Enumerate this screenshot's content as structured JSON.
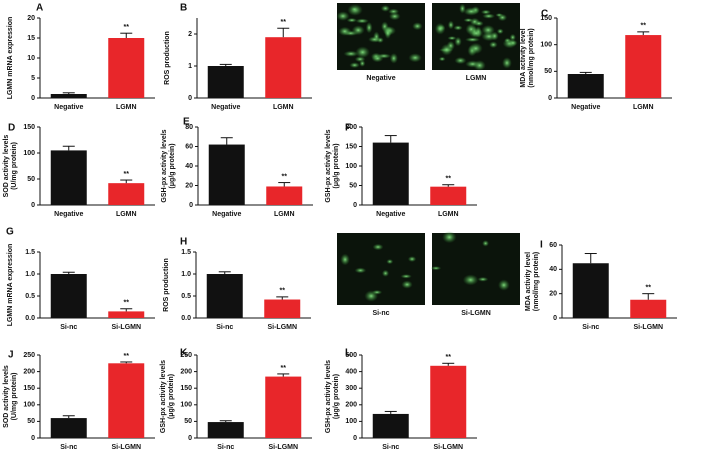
{
  "chart_data": [
    {
      "type": "bar",
      "panel": "A",
      "ylabel": [
        "LGMN mRNA expression"
      ],
      "categories": [
        "Negative",
        "LGMN"
      ],
      "values": [
        1,
        15
      ],
      "errors": [
        0.3,
        1.2
      ],
      "colors": [
        "#111111",
        "#e8262a"
      ],
      "annotation": "**",
      "ylim": [
        0,
        20
      ],
      "yticks": [
        0,
        5,
        10,
        15,
        20
      ]
    },
    {
      "type": "bar",
      "panel": "B",
      "ylabel": [
        "ROS production"
      ],
      "categories": [
        "Negative",
        "LGMN"
      ],
      "values": [
        1.0,
        1.9
      ],
      "errors": [
        0.05,
        0.28
      ],
      "colors": [
        "#111111",
        "#e8262a"
      ],
      "annotation": "**",
      "ylim": [
        0,
        2.5
      ],
      "yticks": [
        0,
        1,
        2
      ]
    },
    {
      "type": "bar",
      "panel": "C",
      "ylabel": [
        "MDA activity level",
        "(nmol/mg protein)"
      ],
      "categories": [
        "Negative",
        "LGMN"
      ],
      "values": [
        45,
        118
      ],
      "errors": [
        3,
        6
      ],
      "colors": [
        "#111111",
        "#e8262a"
      ],
      "annotation": "**",
      "ylim": [
        0,
        150
      ],
      "yticks": [
        0,
        50,
        100,
        150
      ]
    },
    {
      "type": "bar",
      "panel": "D",
      "ylabel": [
        "SOD activity levels",
        "(U/mg protein)"
      ],
      "categories": [
        "Negative",
        "LGMN"
      ],
      "values": [
        105,
        42
      ],
      "errors": [
        8,
        6
      ],
      "colors": [
        "#111111",
        "#e8262a"
      ],
      "annotation": "**",
      "ylim": [
        0,
        150
      ],
      "yticks": [
        0,
        50,
        100,
        150
      ]
    },
    {
      "type": "bar",
      "panel": "E",
      "ylabel": [
        "GSH-px activity levels",
        "(μg/g protein)"
      ],
      "categories": [
        "Negative",
        "LGMN"
      ],
      "values": [
        62,
        19
      ],
      "errors": [
        7,
        4
      ],
      "colors": [
        "#111111",
        "#e8262a"
      ],
      "annotation": "**",
      "ylim": [
        0,
        80
      ],
      "yticks": [
        0,
        20,
        40,
        60,
        80
      ]
    },
    {
      "type": "bar",
      "panel": "F",
      "ylabel": [
        "GSH-px activity levels",
        "(μg/g protein)"
      ],
      "categories": [
        "Negative",
        "LGMN"
      ],
      "values": [
        160,
        47
      ],
      "errors": [
        18,
        5
      ],
      "colors": [
        "#111111",
        "#e8262a"
      ],
      "annotation": "**",
      "ylim": [
        0,
        200
      ],
      "yticks": [
        0,
        50,
        100,
        150,
        200
      ]
    },
    {
      "type": "bar",
      "panel": "G",
      "ylabel": [
        "LGMN mRNA expression"
      ],
      "categories": [
        "Si-nc",
        "Si-LGMN"
      ],
      "values": [
        1.0,
        0.15
      ],
      "errors": [
        0.04,
        0.06
      ],
      "colors": [
        "#111111",
        "#e8262a"
      ],
      "annotation": "**",
      "ylim": [
        0,
        1.5
      ],
      "yticks": [
        {
          "value": 0,
          "label": "0.0"
        },
        {
          "value": 0.5,
          "label": "0.5"
        },
        {
          "value": 1,
          "label": "1.0"
        },
        {
          "value": 1.5,
          "label": "1.5"
        }
      ]
    },
    {
      "type": "bar",
      "panel": "H",
      "ylabel": [
        "ROS production"
      ],
      "categories": [
        "Si-nc",
        "Si-LGMN"
      ],
      "values": [
        1.0,
        0.42
      ],
      "errors": [
        0.05,
        0.06
      ],
      "colors": [
        "#111111",
        "#e8262a"
      ],
      "annotation": "**",
      "ylim": [
        0,
        1.5
      ],
      "yticks": [
        {
          "value": 0,
          "label": "0.0"
        },
        {
          "value": 0.5,
          "label": "0.5"
        },
        {
          "value": 1,
          "label": "1.0"
        },
        {
          "value": 1.5,
          "label": "1.5"
        }
      ]
    },
    {
      "type": "bar",
      "panel": "I",
      "ylabel": [
        "MDA activity level",
        "(nmol/mg protein)"
      ],
      "categories": [
        "Si-nc",
        "Si-LGMN"
      ],
      "values": [
        45,
        15
      ],
      "errors": [
        8,
        5
      ],
      "colors": [
        "#111111",
        "#e8262a"
      ],
      "annotation": "**",
      "ylim": [
        0,
        60
      ],
      "yticks": [
        0,
        20,
        40,
        60
      ]
    },
    {
      "type": "bar",
      "panel": "J",
      "ylabel": [
        "SOD activity levels",
        "(U/mg protein)"
      ],
      "categories": [
        "Si-nc",
        "Si-LGMN"
      ],
      "values": [
        60,
        225
      ],
      "errors": [
        7,
        4
      ],
      "colors": [
        "#111111",
        "#e8262a"
      ],
      "annotation": "**",
      "ylim": [
        0,
        250
      ],
      "yticks": [
        0,
        50,
        100,
        150,
        200,
        250
      ]
    },
    {
      "type": "bar",
      "panel": "K",
      "ylabel": [
        "GSH-px activity levels",
        "(μg/g protein)"
      ],
      "categories": [
        "Si-nc",
        "Si-LGMN"
      ],
      "values": [
        48,
        185
      ],
      "errors": [
        4,
        8
      ],
      "colors": [
        "#111111",
        "#e8262a"
      ],
      "annotation": "**",
      "ylim": [
        0,
        250
      ],
      "yticks": [
        0,
        50,
        100,
        150,
        200,
        250
      ]
    },
    {
      "type": "bar",
      "panel": "L",
      "ylabel": [
        "GSH-px activity levels",
        "(μg/g protein)"
      ],
      "categories": [
        "Si-nc",
        "Si-LGMN"
      ],
      "values": [
        145,
        435
      ],
      "errors": [
        15,
        15
      ],
      "colors": [
        "#111111",
        "#e8262a"
      ],
      "annotation": "**",
      "ylim": [
        0,
        500
      ],
      "yticks": [
        0,
        100,
        200,
        300,
        400,
        500
      ]
    }
  ],
  "micrographs": [
    "Negative",
    "LGMN",
    "Si-nc",
    "Si-LGMN"
  ]
}
